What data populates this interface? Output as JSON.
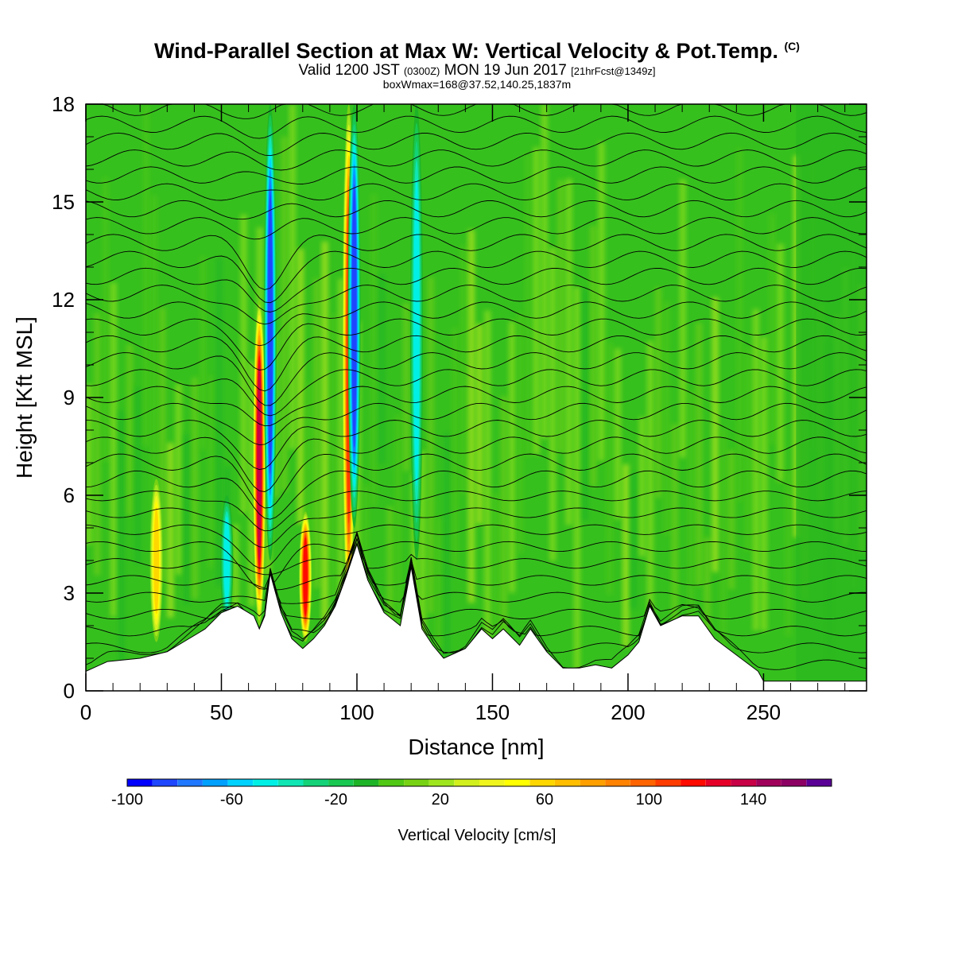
{
  "chart_data": {
    "type": "heatmap",
    "title": "Wind-Parallel Section at Max W: Vertical Velocity & Pot.Temp.",
    "title_mark": "(C)",
    "subtitle_main": "Valid 1200 JST",
    "subtitle_utc": "(0300Z)",
    "subtitle_date": "MON 19 Jun 2017",
    "subtitle_fcst": "[21hrFcst@1349z]",
    "subsubtitle": "boxWmax=168@37.52,140.25,1837m",
    "xlabel": "Distance [nm]",
    "ylabel": "Height [Kft MSL]",
    "xlim": [
      0,
      288
    ],
    "ylim": [
      0,
      18
    ],
    "x_ticks": [
      "0",
      "50",
      "100",
      "150",
      "200",
      "250"
    ],
    "y_ticks": [
      "0",
      "3",
      "6",
      "9",
      "12",
      "15",
      "18"
    ],
    "colorbar": {
      "label": "Vertical Velocity [cm/s]",
      "min": -100,
      "max": 170,
      "step": 10,
      "tick_labels": [
        "-100",
        "-60",
        "-20",
        "20",
        "60",
        "100",
        "140"
      ],
      "colors": [
        "#0000ff",
        "#1e46ff",
        "#1f78ff",
        "#00a0ff",
        "#00d2ff",
        "#00f0e6",
        "#0fe6b4",
        "#14d278",
        "#18c850",
        "#1eb428",
        "#50c814",
        "#78d214",
        "#a0e61e",
        "#d2f01e",
        "#f0f51e",
        "#ffff00",
        "#ffd700",
        "#ffbe00",
        "#ffa000",
        "#ff8200",
        "#ff6400",
        "#ff3c00",
        "#ff0a00",
        "#e60028",
        "#c80046",
        "#a0005a",
        "#8c0064",
        "#5a0096"
      ]
    },
    "updrafts": [
      {
        "x": 64,
        "z_bottom": 2.0,
        "z_top": 12.0,
        "max_w": 140
      },
      {
        "x": 81,
        "z_bottom": 1.5,
        "z_top": 5.5,
        "max_w": 120
      },
      {
        "x": 97,
        "z_bottom": 2.0,
        "z_top": 18.0,
        "max_w": 110
      },
      {
        "x": 26,
        "z_bottom": 1.5,
        "z_top": 6.5,
        "max_w": 60
      }
    ],
    "downdrafts": [
      {
        "x": 68,
        "z_bottom": 4.0,
        "z_top": 18.0,
        "min_w": -90
      },
      {
        "x": 99,
        "z_bottom": 5.0,
        "z_top": 18.0,
        "min_w": -95
      },
      {
        "x": 122,
        "z_bottom": 4.0,
        "z_top": 18.0,
        "min_w": -50
      },
      {
        "x": 52,
        "z_bottom": 2.0,
        "z_top": 6.0,
        "min_w": -50
      }
    ],
    "terrain": {
      "x": [
        0,
        8,
        20,
        30,
        36,
        44,
        50,
        56,
        62,
        64,
        66,
        68,
        72,
        76,
        80,
        84,
        88,
        92,
        96,
        100,
        104,
        110,
        116,
        120,
        124,
        128,
        132,
        140,
        146,
        150,
        154,
        160,
        164,
        170,
        176,
        182,
        188,
        194,
        200,
        204,
        208,
        212,
        220,
        226,
        232,
        240,
        248,
        250,
        288
      ],
      "height": [
        0.6,
        0.9,
        1.0,
        1.2,
        1.5,
        1.9,
        2.4,
        2.6,
        2.3,
        1.9,
        2.3,
        3.6,
        2.4,
        1.6,
        1.3,
        1.6,
        2.0,
        2.6,
        3.5,
        4.5,
        3.4,
        2.4,
        2.0,
        3.8,
        1.9,
        1.4,
        1.0,
        1.3,
        1.9,
        1.6,
        1.9,
        1.4,
        1.9,
        1.2,
        0.7,
        0.7,
        0.8,
        0.7,
        1.1,
        1.5,
        2.6,
        2.0,
        2.3,
        2.3,
        1.6,
        1.1,
        0.6,
        0.3,
        0.3
      ]
    },
    "theta_contours": {
      "count": 34,
      "bottom_kft": 0.8,
      "top_kft": 17.9
    },
    "grid": false,
    "legend": "colorbar-bottom"
  }
}
